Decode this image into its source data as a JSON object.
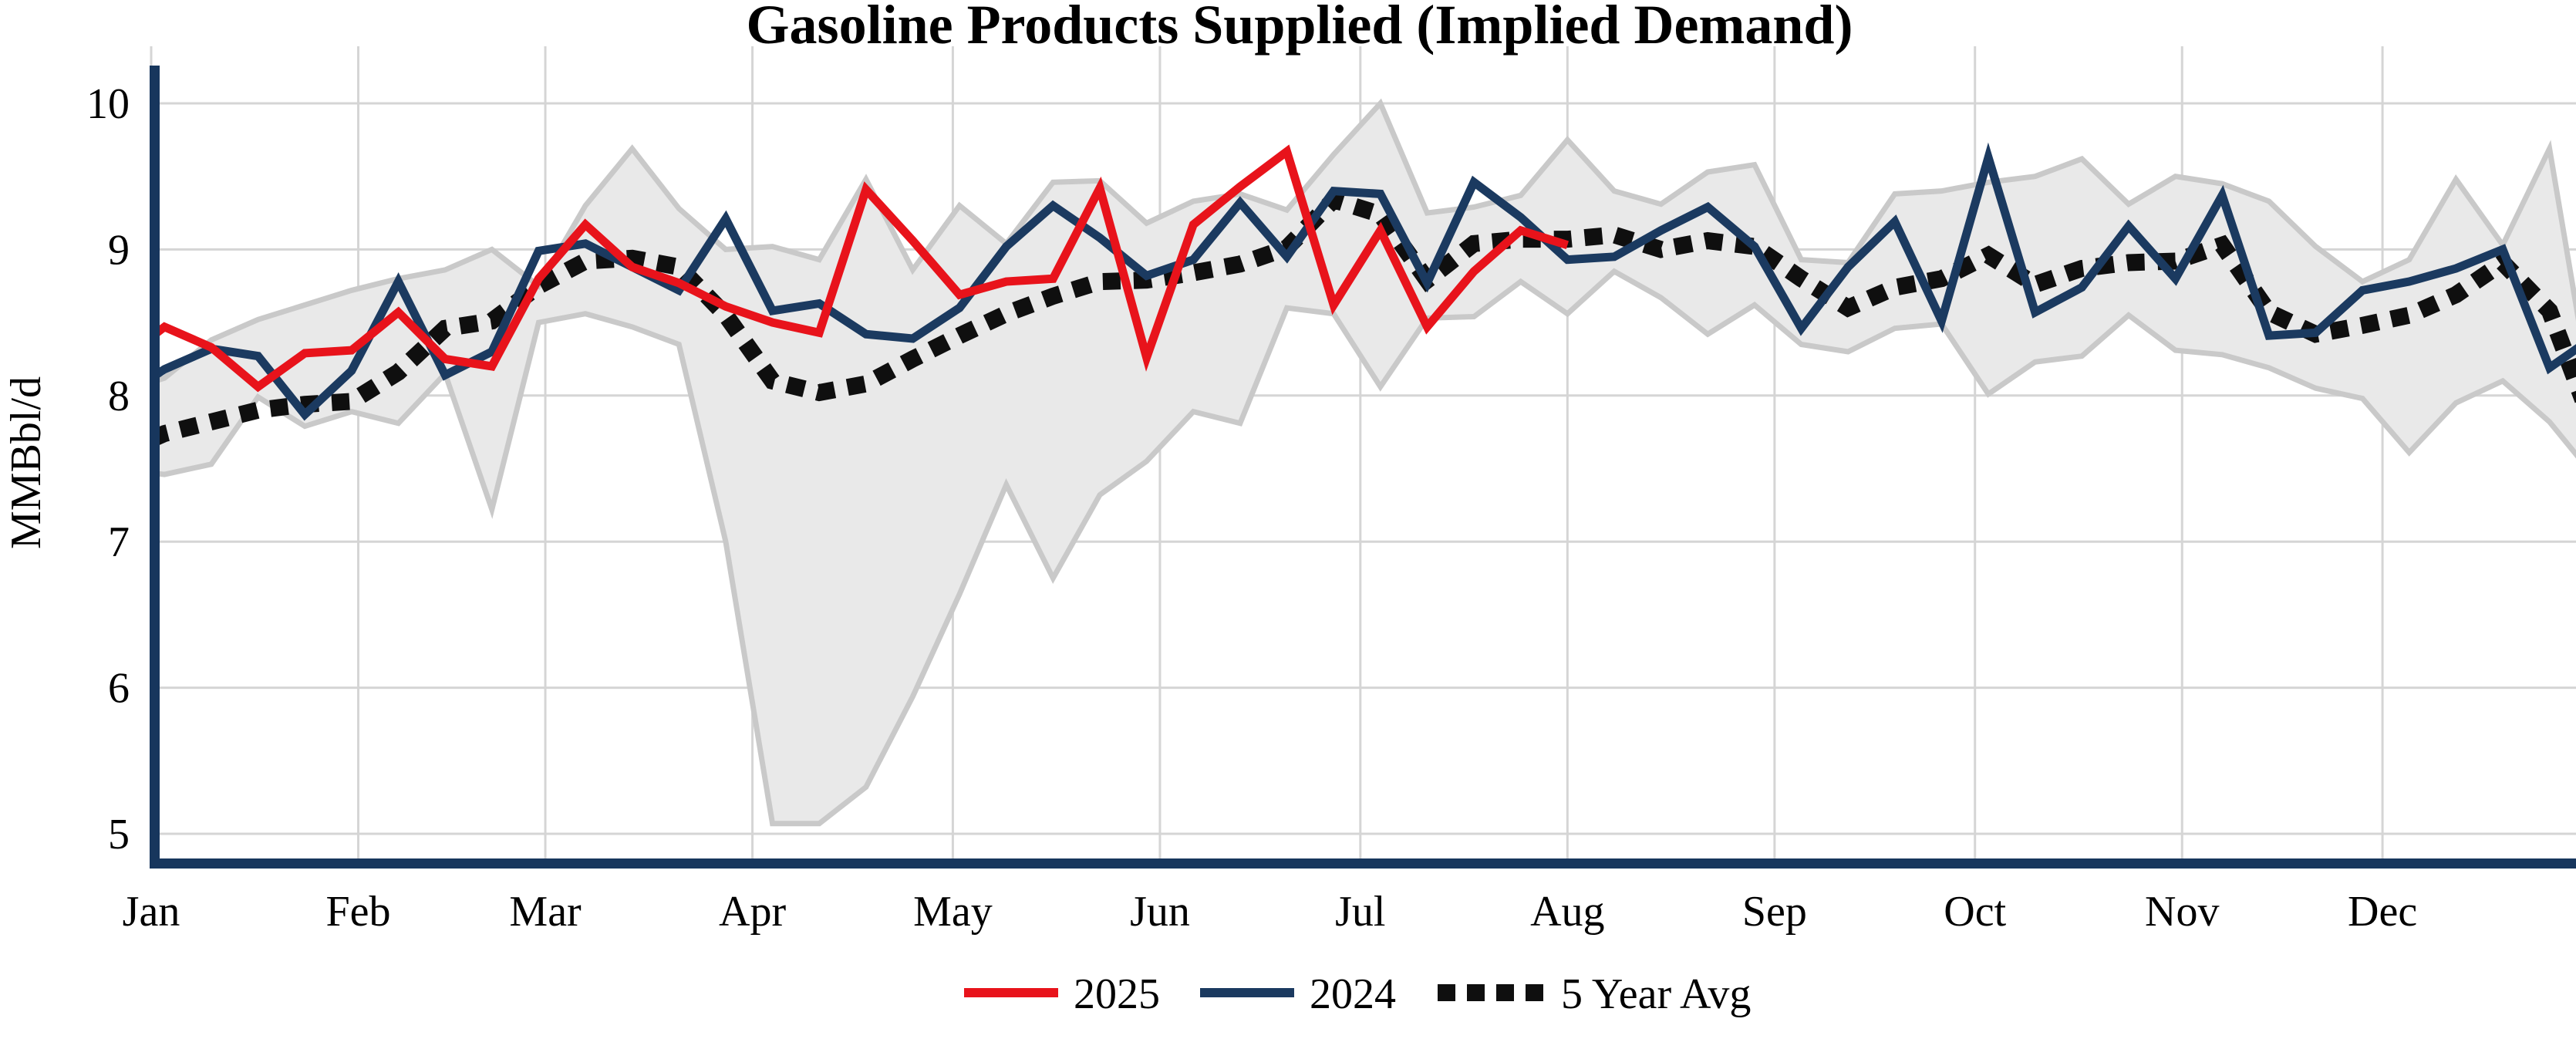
{
  "title": "Gasoline Products Supplied (Implied Demand)",
  "y_axis": {
    "label": "MMBbl/d",
    "tick_labels": [
      "5",
      "6",
      "7",
      "8",
      "9",
      "10"
    ]
  },
  "x_axis": {
    "month_labels": [
      "Jan",
      "Feb",
      "Mar",
      "Apr",
      "May",
      "Jun",
      "Jul",
      "Aug",
      "Sep",
      "Oct",
      "Nov",
      "Dec"
    ]
  },
  "legend": {
    "items": [
      {
        "label": "2025",
        "color": "#e8131b",
        "style": "solid"
      },
      {
        "label": "2024",
        "color": "#1b3a60",
        "style": "solid"
      },
      {
        "label": "5 Year Avg",
        "color": "#0f0f0f",
        "style": "dotted"
      }
    ]
  },
  "chart_data": {
    "type": "line",
    "title": "Gasoline Products Supplied (Implied Demand)",
    "ylabel": "MMBbl/d",
    "ylim": [
      5,
      10
    ],
    "yticks": [
      5,
      6,
      7,
      8,
      9,
      10
    ],
    "grid": true,
    "legend_position": "bottom",
    "x_unit": "day_of_year",
    "month_start_days": [
      1,
      32,
      60,
      91,
      121,
      152,
      182,
      213,
      244,
      274,
      305,
      335
    ],
    "x": [
      1,
      3,
      10,
      17,
      24,
      31,
      38,
      45,
      52,
      59,
      66,
      73,
      80,
      87,
      94,
      101,
      108,
      115,
      122,
      129,
      136,
      143,
      150,
      157,
      164,
      171,
      178,
      185,
      192,
      199,
      206,
      213,
      220,
      227,
      234,
      241,
      248,
      255,
      262,
      269,
      276,
      283,
      290,
      297,
      304,
      311,
      318,
      325,
      332,
      339,
      346,
      353,
      360,
      365
    ],
    "series": [
      {
        "name": "2025",
        "color": "#e8131b",
        "style": "solid",
        "values": [
          8.4,
          8.47,
          8.33,
          8.06,
          8.29,
          8.31,
          8.57,
          8.25,
          8.2,
          8.8,
          9.17,
          8.88,
          8.77,
          8.61,
          8.5,
          8.43,
          9.41,
          9.06,
          8.69,
          8.78,
          8.8,
          9.42,
          8.26,
          9.17,
          9.43,
          9.67,
          8.62,
          9.13,
          8.47,
          8.85,
          9.13,
          9.03,
          null,
          null,
          null,
          null,
          null,
          null,
          null,
          null,
          null,
          null,
          null,
          null,
          null,
          null,
          null,
          null,
          null,
          null,
          null,
          null,
          null,
          null
        ]
      },
      {
        "name": "2024",
        "color": "#1b3a60",
        "style": "solid",
        "values": [
          8.12,
          8.18,
          8.32,
          8.27,
          7.87,
          8.17,
          8.78,
          8.14,
          8.3,
          8.99,
          9.04,
          8.88,
          8.72,
          9.21,
          8.58,
          8.63,
          8.42,
          8.39,
          8.6,
          9.02,
          9.3,
          9.08,
          8.82,
          8.93,
          9.32,
          8.95,
          9.4,
          9.38,
          8.77,
          9.46,
          9.22,
          8.93,
          8.95,
          9.13,
          9.29,
          9.02,
          8.46,
          8.88,
          9.19,
          8.51,
          9.63,
          8.57,
          8.74,
          9.16,
          8.8,
          9.37,
          8.41,
          8.43,
          8.72,
          8.78,
          8.87,
          9.0,
          8.19,
          8.35
        ]
      },
      {
        "name": "5 Year Avg",
        "color": "#0f0f0f",
        "style": "dotted",
        "values": [
          7.7,
          7.74,
          7.82,
          7.9,
          7.94,
          7.96,
          8.16,
          8.46,
          8.51,
          8.75,
          8.92,
          8.94,
          8.88,
          8.55,
          8.1,
          8.02,
          8.08,
          8.25,
          8.41,
          8.56,
          8.68,
          8.78,
          8.79,
          8.84,
          8.9,
          9.01,
          9.34,
          9.24,
          8.79,
          9.04,
          9.07,
          9.07,
          9.1,
          9.0,
          9.06,
          9.02,
          8.8,
          8.6,
          8.74,
          8.8,
          8.96,
          8.76,
          8.87,
          8.91,
          8.92,
          9.03,
          8.57,
          8.42,
          8.48,
          8.55,
          8.69,
          8.91,
          8.58,
          7.97
        ]
      }
    ],
    "band": {
      "name": "5-year range",
      "fill": "#e9e9e9",
      "edge": "#c9c9c9",
      "upper": [
        8.09,
        8.12,
        8.38,
        8.52,
        8.62,
        8.72,
        8.8,
        8.86,
        9.0,
        8.75,
        9.3,
        9.69,
        9.28,
        9.0,
        9.02,
        8.93,
        9.48,
        8.86,
        9.3,
        9.04,
        9.46,
        9.47,
        9.18,
        9.33,
        9.38,
        9.27,
        9.65,
        10.0,
        9.25,
        9.29,
        9.37,
        9.75,
        9.4,
        9.31,
        9.53,
        9.58,
        8.93,
        8.91,
        9.38,
        9.4,
        9.46,
        9.5,
        9.62,
        9.31,
        9.5,
        9.45,
        9.33,
        9.02,
        8.78,
        8.93,
        9.48,
        9.03,
        9.69,
        8.34
      ],
      "lower": [
        7.47,
        7.46,
        7.53,
        7.99,
        7.79,
        7.89,
        7.81,
        8.15,
        7.22,
        8.5,
        8.56,
        8.47,
        8.35,
        7.0,
        5.07,
        5.07,
        5.32,
        5.94,
        6.64,
        7.39,
        6.75,
        7.32,
        7.55,
        7.89,
        7.81,
        8.6,
        8.56,
        8.06,
        8.53,
        8.54,
        8.78,
        8.56,
        8.85,
        8.67,
        8.42,
        8.62,
        8.35,
        8.3,
        8.46,
        8.49,
        8.01,
        8.23,
        8.27,
        8.55,
        8.31,
        8.28,
        8.19,
        8.05,
        7.98,
        7.61,
        7.95,
        8.1,
        7.82,
        7.54
      ]
    }
  }
}
